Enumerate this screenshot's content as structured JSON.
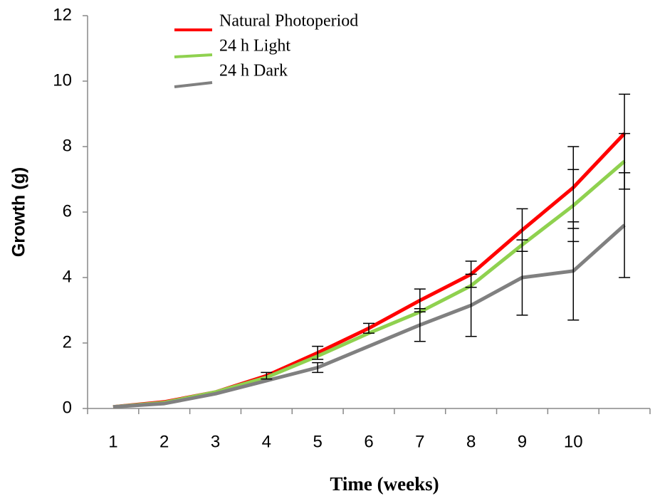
{
  "chart_data": {
    "type": "line",
    "xlabel": "Time (weeks)",
    "ylabel": "Growth (g)",
    "categories": [
      "1",
      "2",
      "3",
      "4",
      "5",
      "6",
      "7",
      "8",
      "9",
      "10",
      null
    ],
    "series": [
      {
        "name": "Natural Photoperiod",
        "color": "#ff0000",
        "values": [
          0.05,
          0.2,
          0.5,
          1.0,
          1.7,
          2.45,
          3.3,
          4.1,
          5.45,
          6.75,
          8.4
        ],
        "errors": [
          null,
          null,
          null,
          0.1,
          0.2,
          0.15,
          0.35,
          0.4,
          0.65,
          1.25,
          1.2
        ]
      },
      {
        "name": "24 h Light",
        "color": "#8fd14f",
        "values": [
          0.05,
          0.18,
          0.5,
          0.95,
          1.6,
          2.3,
          2.95,
          3.75,
          5.0,
          6.2,
          7.55
        ],
        "errors": [
          null,
          null,
          null,
          null,
          null,
          null,
          null,
          null,
          null,
          1.1,
          0.85
        ]
      },
      {
        "name": "24 h Dark",
        "color": "#808080",
        "values": [
          0.05,
          0.15,
          0.45,
          0.85,
          1.25,
          1.9,
          2.55,
          3.15,
          4.0,
          4.2,
          5.6
        ],
        "errors": [
          null,
          null,
          null,
          null,
          0.15,
          null,
          0.5,
          0.95,
          1.15,
          1.5,
          1.6
        ]
      }
    ],
    "ylim": [
      0,
      12
    ],
    "yticks": [
      0,
      2,
      4,
      6,
      8,
      10,
      12
    ]
  }
}
